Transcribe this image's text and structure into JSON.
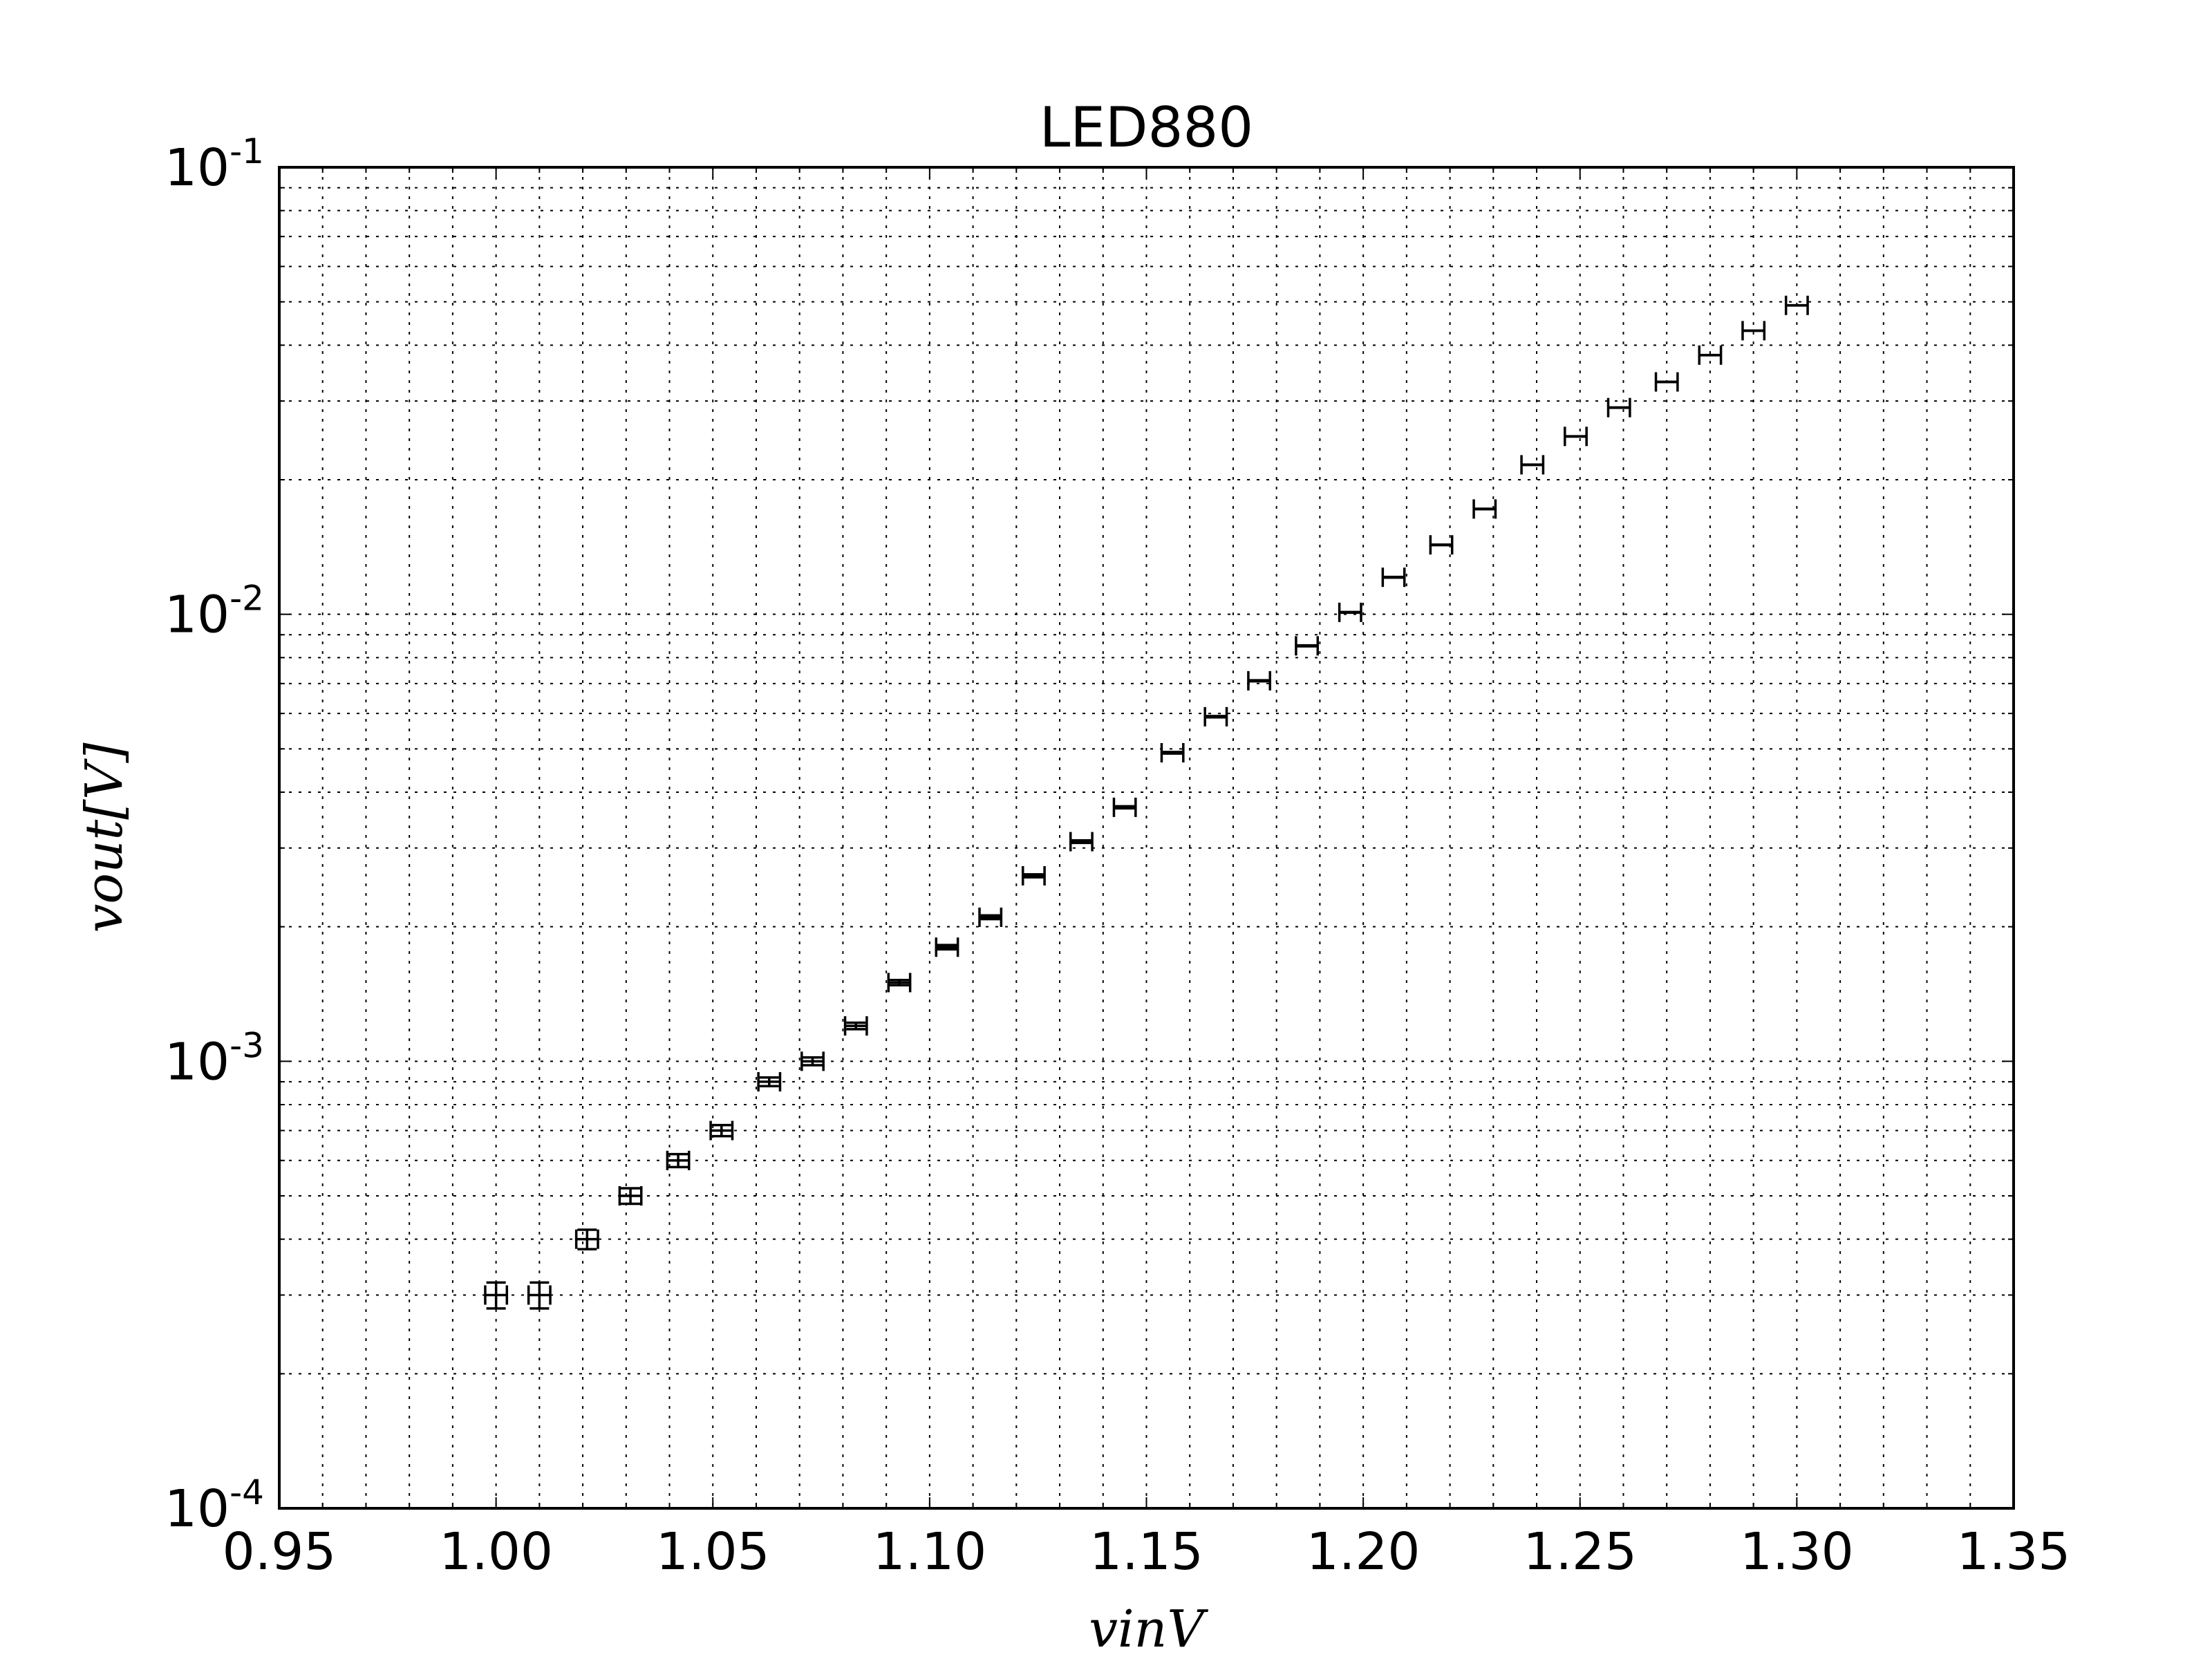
{
  "chart_data": {
    "type": "scatter",
    "title": "LED880",
    "xlabel": "vinV",
    "ylabel": "vout[V]",
    "xlim": [
      0.95,
      1.35
    ],
    "ylim": [
      0.0001,
      0.1
    ],
    "yscale": "log",
    "grid": true,
    "x_ticks": [
      "0.95",
      "1.00",
      "1.05",
      "1.10",
      "1.15",
      "1.20",
      "1.25",
      "1.30",
      "1.35"
    ],
    "y_ticks": [
      {
        "base": "10",
        "exp": "-4"
      },
      {
        "base": "10",
        "exp": "-3"
      },
      {
        "base": "10",
        "exp": "-2"
      },
      {
        "base": "10",
        "exp": "-1"
      }
    ],
    "series": [
      {
        "marker": "errorbar",
        "color": "#000000",
        "x": [
          1.0,
          1.01,
          1.021,
          1.031,
          1.042,
          1.052,
          1.063,
          1.073,
          1.083,
          1.093,
          1.104,
          1.114,
          1.124,
          1.135,
          1.145,
          1.156,
          1.166,
          1.176,
          1.187,
          1.197,
          1.207,
          1.218,
          1.228,
          1.239,
          1.249,
          1.259,
          1.27,
          1.28,
          1.29,
          1.3
        ],
        "y": [
          0.0003,
          0.0003,
          0.0004,
          0.0005,
          0.0006,
          0.0007,
          0.0009,
          0.001,
          0.0012,
          0.0015,
          0.0018,
          0.0021,
          0.0026,
          0.0031,
          0.0037,
          0.0049,
          0.0059,
          0.0071,
          0.0085,
          0.0101,
          0.0121,
          0.0143,
          0.0172,
          0.0216,
          0.025,
          0.029,
          0.0331,
          0.038,
          0.0431,
          0.0491
        ],
        "xerr": 0.0025,
        "yerr": 2e-05
      }
    ]
  }
}
